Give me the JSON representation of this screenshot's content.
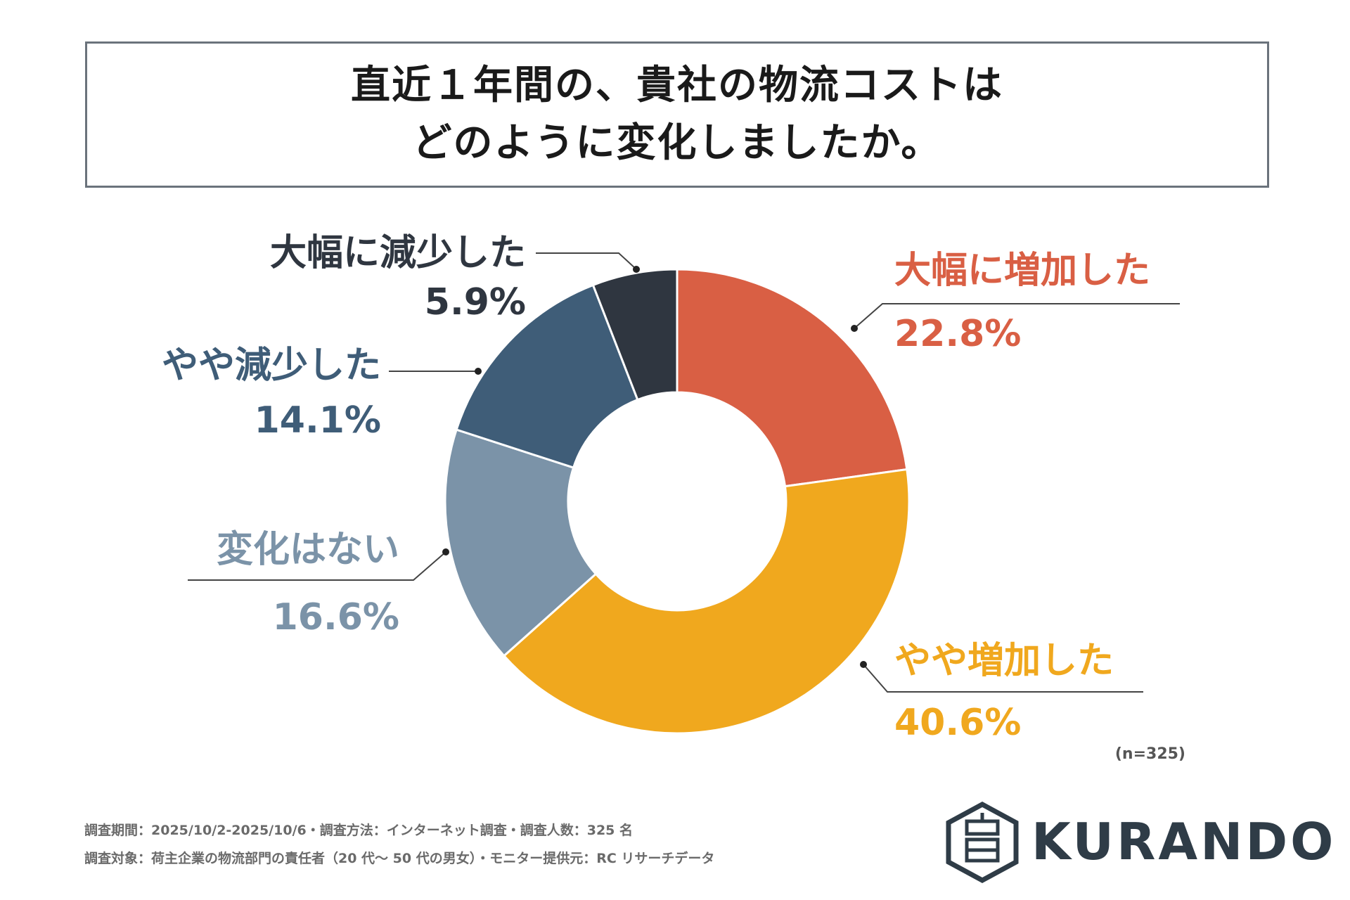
{
  "title": {
    "line1": "直近１年間の、貴社の物流コストは",
    "line2": "どのように変化しましたか。"
  },
  "chart_data": {
    "type": "pie",
    "donut": true,
    "title": "直近１年間の、貴社の物流コストは どのように変化しましたか。",
    "categories": [
      "大幅に増加した",
      "やや増加した",
      "変化はない",
      "やや減少した",
      "大幅に減少した"
    ],
    "values": [
      22.8,
      40.6,
      16.6,
      14.1,
      5.9
    ],
    "labels": [
      "22.8%",
      "40.6%",
      "16.6%",
      "14.1%",
      "5.9%"
    ],
    "colors": [
      "#d95f44",
      "#f0a81e",
      "#7b93a8",
      "#3f5d78",
      "#2f3640"
    ]
  },
  "sample_size": "(n=325)",
  "footer": {
    "line1": "調査期間：2025/10/2-2025/10/6・調査方法：インターネット調査・調査人数：325 名",
    "line2": "調査対象：荷主企業の物流部門の責任者（20 代〜 50 代の男女）・モニター提供元：RC リサーチデータ"
  },
  "logo": {
    "text": "KURANDO",
    "icon": "kurando-hexagon-icon"
  }
}
